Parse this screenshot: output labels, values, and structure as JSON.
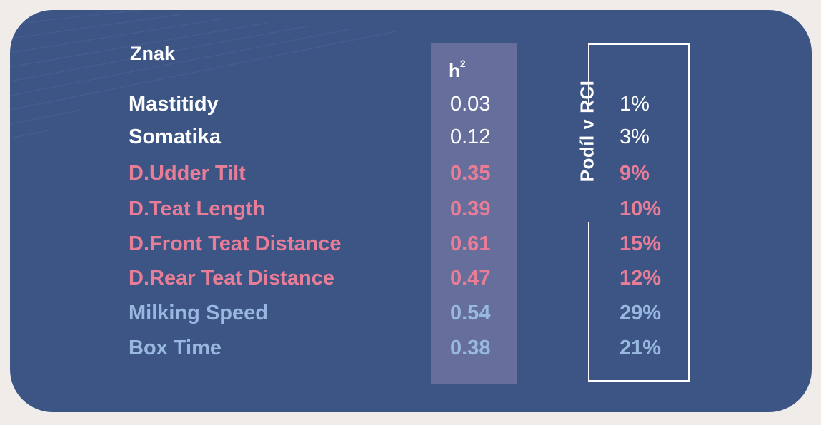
{
  "headers": {
    "trait": "Znak",
    "h2_main": "h",
    "h2_sup": "2",
    "rci_share": "Podíl v RCI"
  },
  "rows": [
    {
      "name": "Mastitidy",
      "h2": "0.03",
      "rci": "1%",
      "group": "white"
    },
    {
      "name": "Somatika",
      "h2": "0.12",
      "rci": "3%",
      "group": "white"
    },
    {
      "name": "D.Udder Tilt",
      "h2": "0.35",
      "rci": "9%",
      "group": "pink"
    },
    {
      "name": "D.Teat Length",
      "h2": "0.39",
      "rci": "10%",
      "group": "pink"
    },
    {
      "name": "D.Front Teat Distance",
      "h2": "0.61",
      "rci": "15%",
      "group": "pink"
    },
    {
      "name": "D.Rear Teat Distance",
      "h2": "0.47",
      "rci": "12%",
      "group": "pink"
    },
    {
      "name": "Milking Speed",
      "h2": "0.54",
      "rci": "29%",
      "group": "blue"
    },
    {
      "name": "Box Time",
      "h2": "0.38",
      "rci": "21%",
      "group": "blue"
    }
  ],
  "colors": {
    "page_background": "#efecea",
    "card_background": "#3c5585",
    "h2_band": "#666f9c",
    "white_text": "#ffffff",
    "pink_text": "#e87d97",
    "blue_text": "#99b8df"
  }
}
